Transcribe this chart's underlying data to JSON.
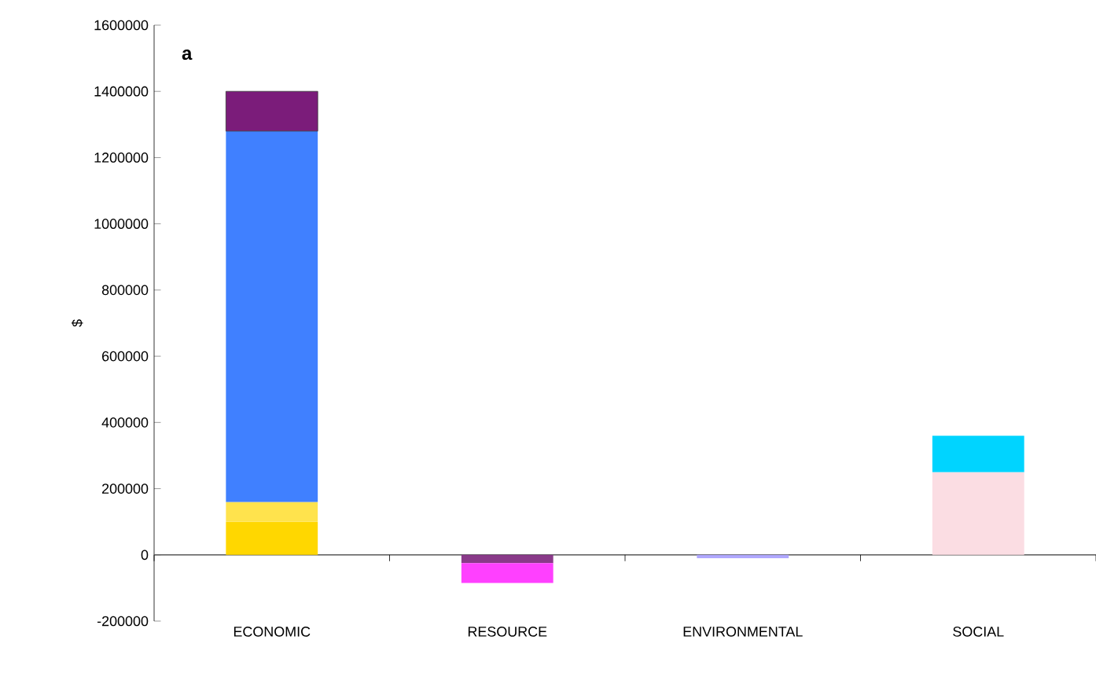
{
  "chart_data": {
    "type": "bar",
    "stacked": true,
    "ylabel": "$",
    "annotations": [
      "a"
    ],
    "categories": [
      "ECONOMIC",
      "RESOURCE",
      "ENVIRONMENTAL",
      "SOCIAL"
    ],
    "ylim": [
      -200000,
      1600000
    ],
    "yticks": [
      -200000,
      0,
      200000,
      400000,
      600000,
      800000,
      1000000,
      1200000,
      1400000,
      1600000
    ],
    "series": [
      {
        "color": "#ffd700",
        "values": [
          100000,
          null,
          null,
          null
        ]
      },
      {
        "color": "#ffe34d",
        "values": [
          60000,
          null,
          null,
          null
        ]
      },
      {
        "color": "#4080ff",
        "values": [
          1120000,
          null,
          null,
          null
        ]
      },
      {
        "color": "#7b1c7a",
        "values": [
          120000,
          null,
          null,
          null
        ]
      },
      {
        "color": "#8a3a8a",
        "values": [
          null,
          -25000,
          null,
          null
        ]
      },
      {
        "color": "#ff40ff",
        "values": [
          null,
          -60000,
          null,
          null
        ]
      },
      {
        "color": "#b0a8ff",
        "values": [
          null,
          null,
          -10000,
          null
        ]
      },
      {
        "color": "#fbdde3",
        "values": [
          null,
          null,
          null,
          250000
        ]
      },
      {
        "color": "#00d4ff",
        "values": [
          null,
          null,
          null,
          110000
        ]
      }
    ]
  }
}
